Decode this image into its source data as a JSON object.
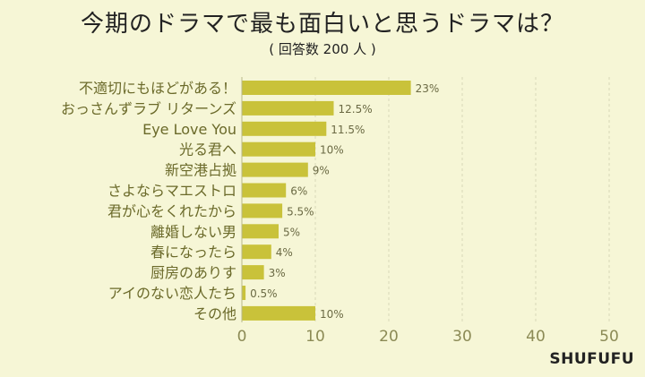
{
  "header": {
    "title": "今期のドラマで最も面白いと思うドラマは？",
    "subtitle": "( 回答数 200 人 )"
  },
  "brand": "SHUFUFU",
  "colors": {
    "bar": "#c9c23a",
    "background": "#f6f6d6",
    "label_text": "#6b6a2a",
    "value_text": "#6b6a44",
    "tick_text": "#8b8a55"
  },
  "chart_data": {
    "type": "bar",
    "orientation": "horizontal",
    "categories": [
      "不適切にもほどがある！",
      "おっさんずラブ リターンズ",
      "Eye Love You",
      "光る君へ",
      "新空港占拠",
      "さよならマエストロ",
      "君が心をくれたから",
      "離婚しない男",
      "春になったら",
      "厨房のありす",
      "アイのない恋人たち",
      "その他"
    ],
    "values": [
      23,
      12.5,
      11.5,
      10,
      9,
      6,
      5.5,
      5,
      4,
      3,
      0.5,
      10
    ],
    "value_labels": [
      "23%",
      "12.5%",
      "11.5%",
      "10%",
      "9%",
      "6%",
      "5.5%",
      "5%",
      "4%",
      "3%",
      "0.5%",
      "10%"
    ],
    "xlim": [
      0,
      50
    ],
    "xticks": [
      "0",
      "10",
      "20",
      "30",
      "40",
      "50"
    ],
    "grid": "vertical dashed"
  }
}
